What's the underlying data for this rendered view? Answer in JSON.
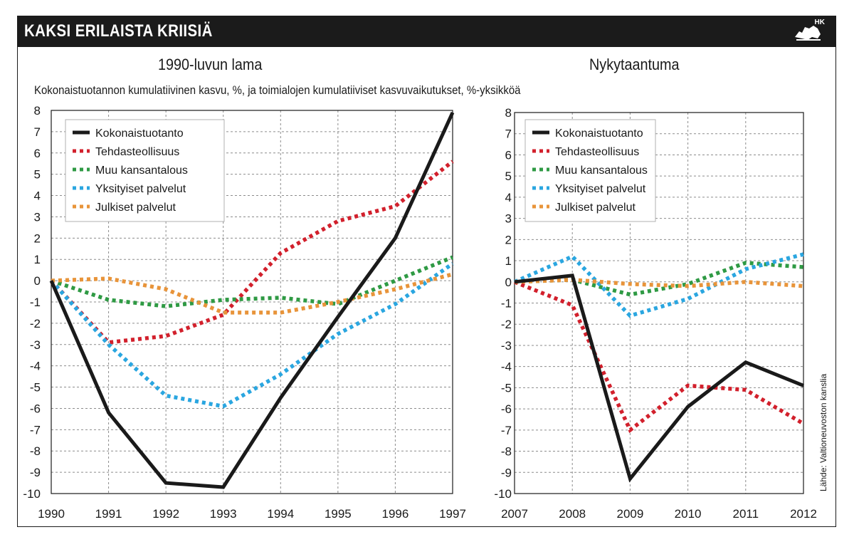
{
  "header": {
    "title": "KAKSI ERILAISTA KRIISIÄ",
    "logo_text": "HK"
  },
  "caption": "Kokonaistuotannon kumulatiivinen kasvu, %, ja toimialojen kumulatiiviset kasvuvaikutukset, %-yksikköä",
  "source": "Lähde: Valtioneuvoston kanslia",
  "colors": {
    "Kokonaistuotanto": "#1a1a1a",
    "Tehdasteollisuus": "#d2202c",
    "Muu kansantalous": "#2f9a44",
    "Yksityiset palvelut": "#2aa6e0",
    "Julkiset palvelut": "#e8943a"
  },
  "chart_data": [
    {
      "type": "line",
      "title": "1990-luvun lama",
      "x": [
        "1990",
        "1991",
        "1992",
        "1993",
        "1994",
        "1995",
        "1996",
        "1997"
      ],
      "ylim": [
        -10,
        8
      ],
      "yticks": [
        "8",
        "7",
        "6",
        "5",
        "4",
        "3",
        "2",
        "1",
        "0",
        "-1",
        "-2",
        "-3",
        "-4",
        "-5",
        "-6",
        "-7",
        "-8",
        "-9",
        "-10"
      ],
      "grid": true,
      "legend": "top-left",
      "series": [
        {
          "name": "Kokonaistuotanto",
          "values": [
            0,
            -6.2,
            -9.5,
            -9.7,
            -5.5,
            -1.7,
            2.0,
            7.9
          ]
        },
        {
          "name": "Tehdasteollisuus",
          "values": [
            0,
            -2.9,
            -2.6,
            -1.6,
            1.3,
            2.8,
            3.5,
            5.6
          ]
        },
        {
          "name": "Muu kansantalous",
          "values": [
            0,
            -0.9,
            -1.2,
            -0.9,
            -0.8,
            -1.1,
            0.0,
            1.1
          ]
        },
        {
          "name": "Yksityiset palvelut",
          "values": [
            0,
            -3.0,
            -5.4,
            -5.9,
            -4.4,
            -2.5,
            -1.1,
            0.8
          ]
        },
        {
          "name": "Julkiset palvelut",
          "values": [
            0,
            0.1,
            -0.4,
            -1.5,
            -1.5,
            -1.0,
            -0.4,
            0.3
          ]
        }
      ]
    },
    {
      "type": "line",
      "title": "Nykytaantuma",
      "x": [
        "2007",
        "2008",
        "2009",
        "2010",
        "2011",
        "2012"
      ],
      "ylim": [
        -10,
        8
      ],
      "yticks": [
        "8",
        "7",
        "6",
        "5",
        "4",
        "3",
        "2",
        "1",
        "0",
        "-1",
        "-2",
        "-3",
        "-4",
        "-5",
        "-6",
        "-7",
        "-8",
        "-9",
        "-10"
      ],
      "grid": true,
      "legend": "top-left",
      "series": [
        {
          "name": "Kokonaistuotanto",
          "values": [
            0,
            0.3,
            -9.3,
            -5.9,
            -3.8,
            -4.9
          ]
        },
        {
          "name": "Tehdasteollisuus",
          "values": [
            0,
            -1.1,
            -7.0,
            -4.9,
            -5.1,
            -6.7
          ]
        },
        {
          "name": "Muu kansantalous",
          "values": [
            0,
            0.1,
            -0.6,
            -0.1,
            0.9,
            0.7
          ]
        },
        {
          "name": "Yksityiset palvelut",
          "values": [
            0,
            1.2,
            -1.6,
            -0.8,
            0.6,
            1.3
          ]
        },
        {
          "name": "Julkiset palvelut",
          "values": [
            0,
            0.1,
            -0.1,
            -0.2,
            0.0,
            -0.2
          ]
        }
      ]
    }
  ]
}
